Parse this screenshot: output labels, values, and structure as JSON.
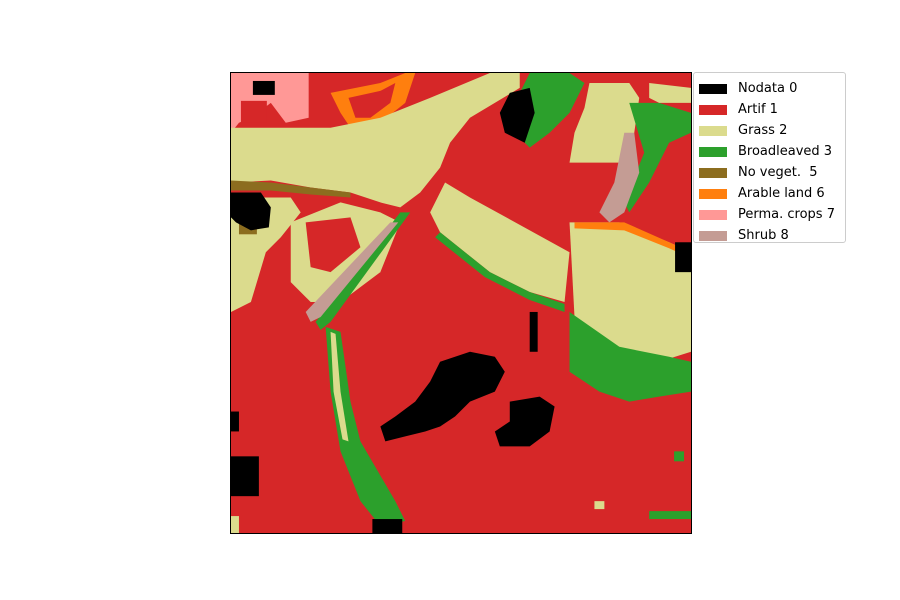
{
  "legend": {
    "items": [
      {
        "label": "Nodata 0",
        "color": "#000000"
      },
      {
        "label": "Artif 1",
        "color": "#d62728"
      },
      {
        "label": "Grass 2",
        "color": "#dbdb8d"
      },
      {
        "label": "Broadleaved 3",
        "color": "#2ca02c"
      },
      {
        "label": "No veget.  5",
        "color": "#8c6d1f"
      },
      {
        "label": "Arable land 6",
        "color": "#ff7f0e"
      },
      {
        "label": "Perma. crops 7",
        "color": "#ff9896"
      },
      {
        "label": "Shrub 8",
        "color": "#c49c94"
      }
    ]
  }
}
